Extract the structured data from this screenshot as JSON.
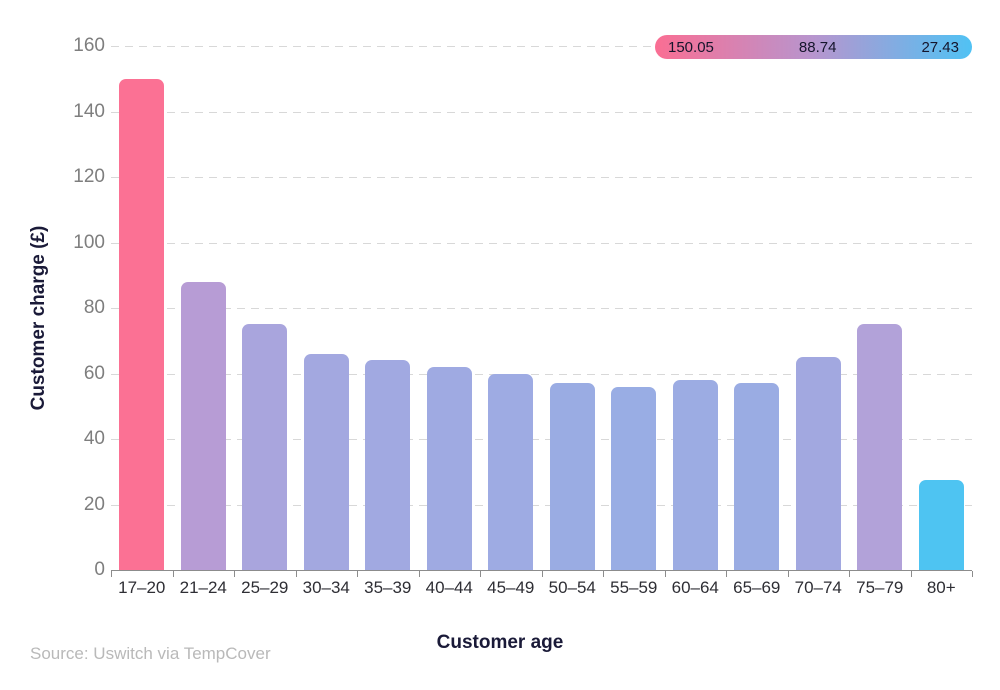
{
  "chart_data": {
    "type": "bar",
    "title": "",
    "xlabel": "Customer age",
    "ylabel": "Customer charge (£)",
    "categories": [
      "17–20",
      "21–24",
      "25–29",
      "30–34",
      "35–39",
      "40–44",
      "45–49",
      "50–54",
      "55–59",
      "60–64",
      "65–69",
      "70–74",
      "75–79",
      "80+"
    ],
    "values": [
      150.05,
      88,
      75,
      66,
      64,
      62,
      60,
      57,
      56,
      58,
      57,
      65,
      75,
      27.43
    ],
    "bar_colors": [
      "#fb7194",
      "#b79cd5",
      "#a9a5dd",
      "#a3a8e0",
      "#a1a9e1",
      "#9faae2",
      "#9eabe3",
      "#9aace3",
      "#99ade4",
      "#9cace3",
      "#9aace3",
      "#a2a8e0",
      "#b2a2d9",
      "#4ec4f2"
    ],
    "ylim": [
      0,
      160
    ],
    "yticks": [
      0,
      20,
      40,
      60,
      80,
      100,
      120,
      140,
      160
    ],
    "grid": "horizontal-dashed",
    "legend": {
      "position": "top-right",
      "max_label": "150.05",
      "mid_label": "88.74",
      "min_label": "27.43",
      "gradient": [
        "#fa6e93",
        "#b795ce",
        "#50c2f4"
      ]
    }
  },
  "source": "Source: Uswitch via TempCover"
}
